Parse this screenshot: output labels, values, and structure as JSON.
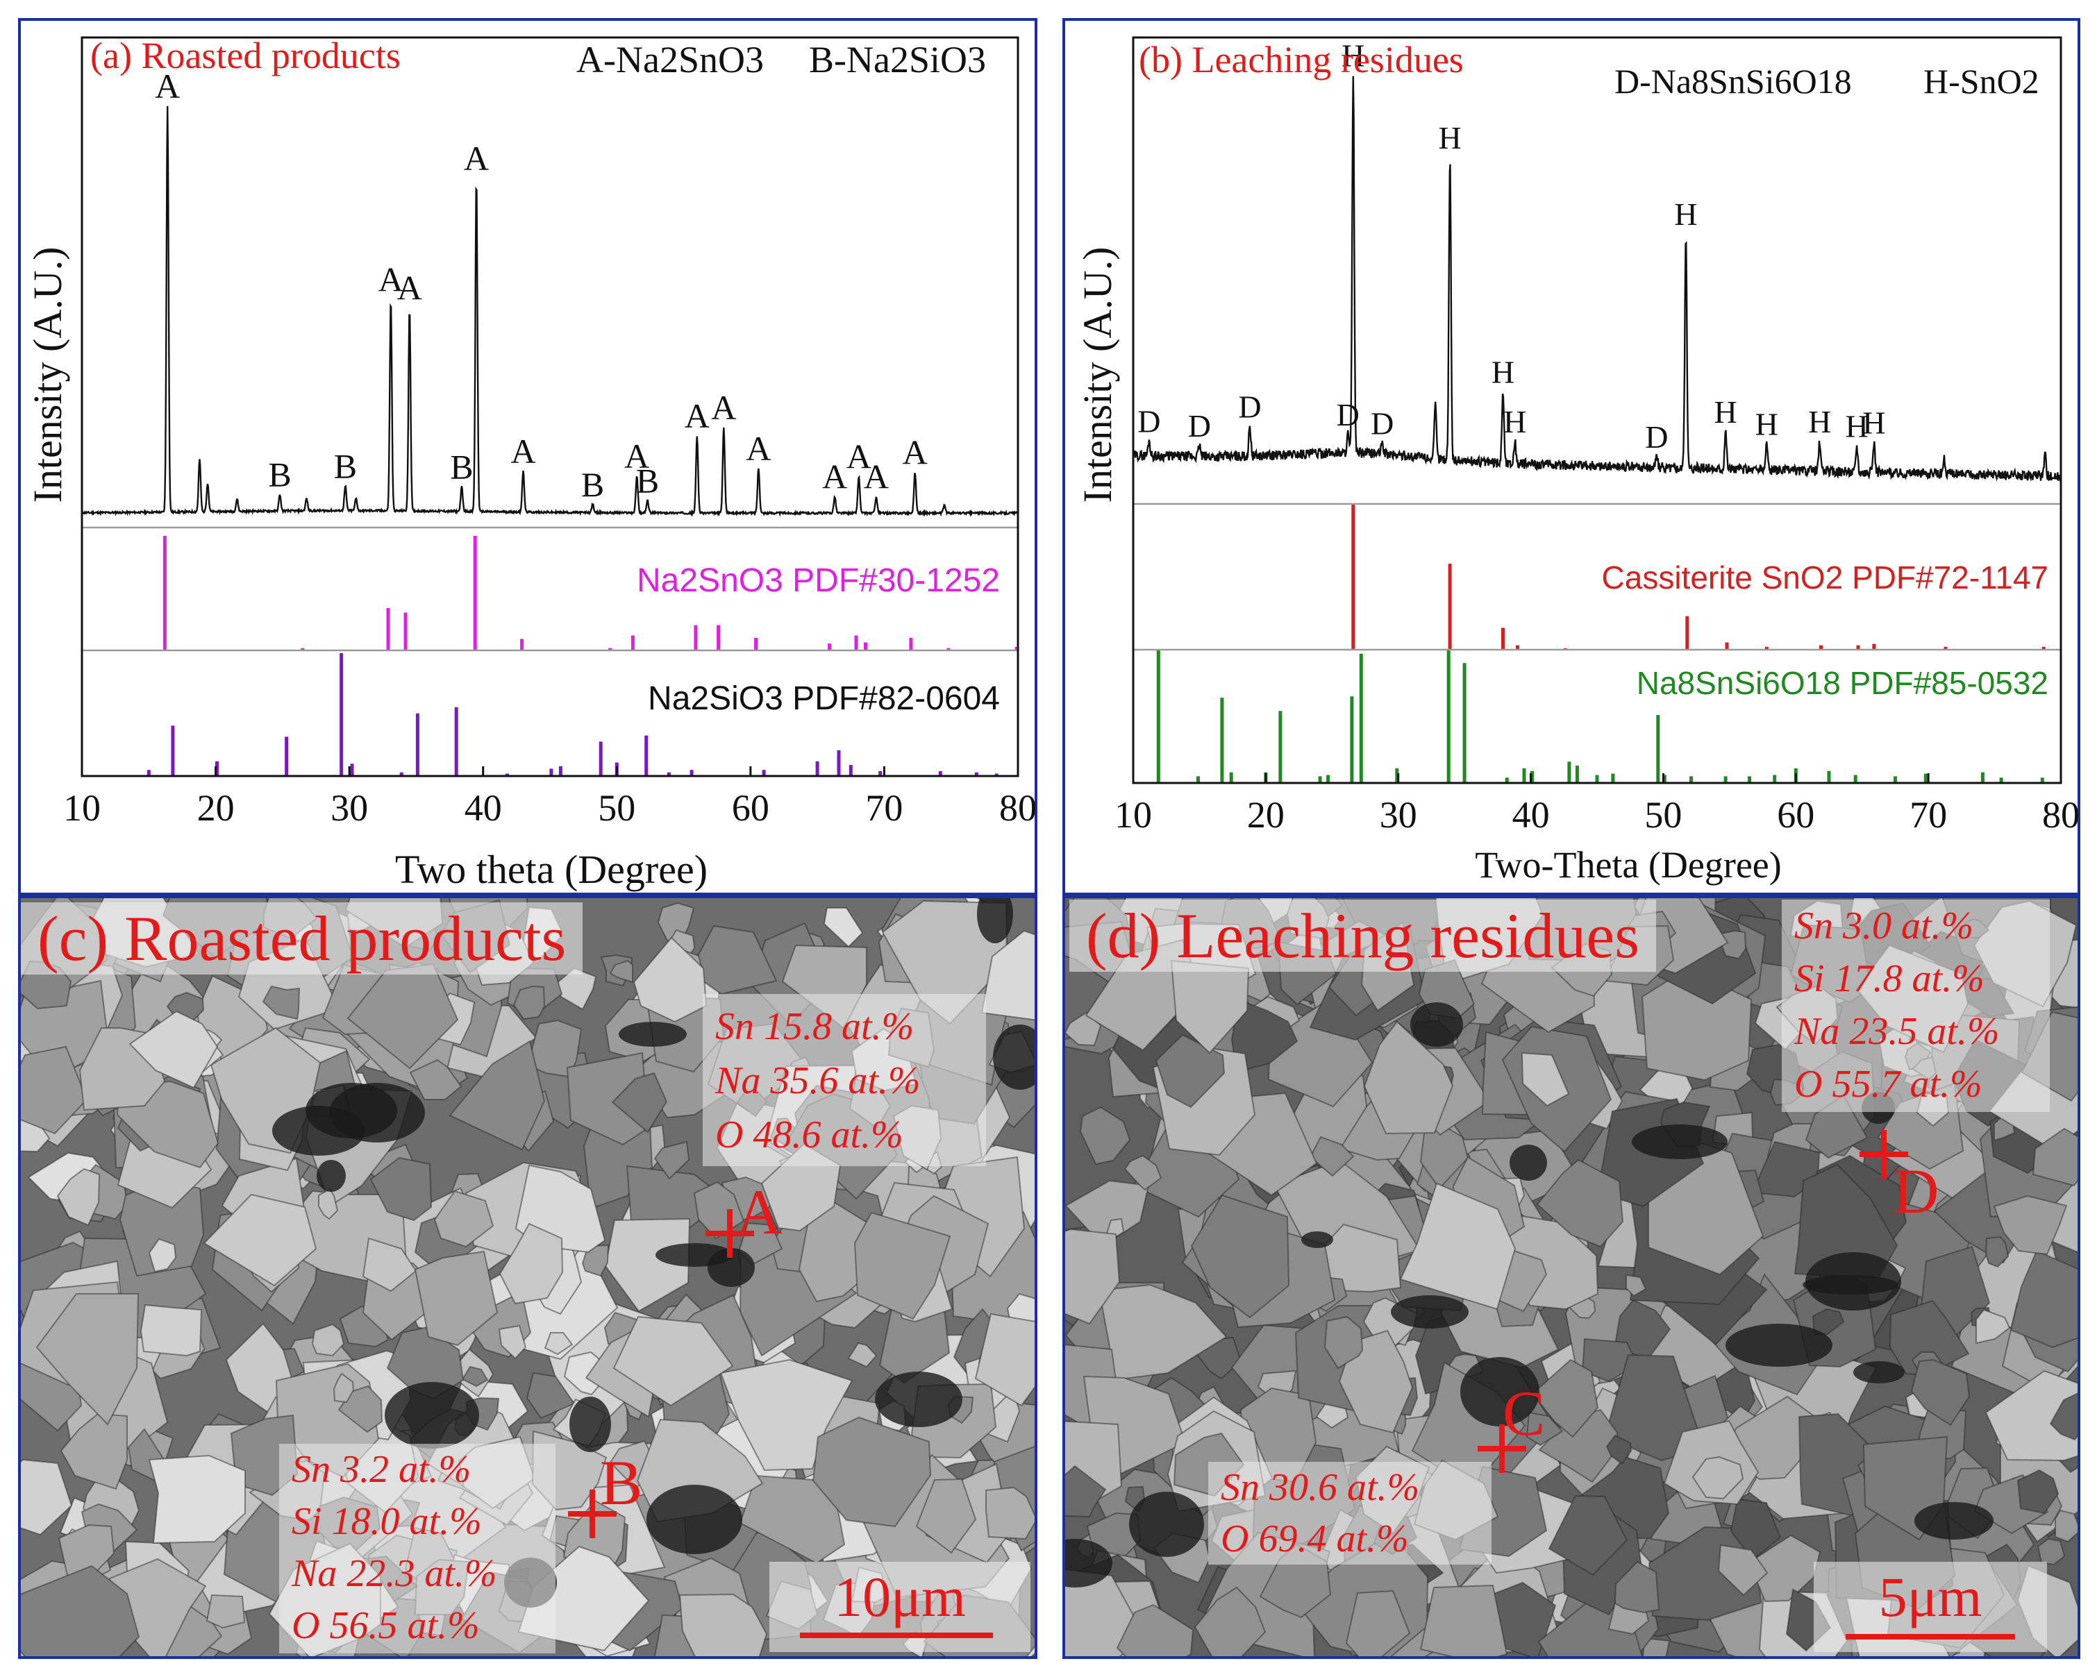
{
  "panel_a": {
    "title": "(a) Roasted products",
    "legend_a": "A-Na2SnO3",
    "legend_b": "B-Na2SiO3",
    "ref1_label": "Na2SnO3 PDF#30-1252",
    "ref2_label": "Na2SiO3 PDF#82-0604",
    "xlabel": "Two theta (Degree)",
    "ylabel": "Intensity (A.U.)",
    "colors": {
      "ref1": "#e020e0",
      "ref2": "#7a18c8",
      "title": "#e31a1a"
    }
  },
  "panel_b": {
    "title": "(b) Leaching residues",
    "legend_d": "D-Na8SnSi6O18",
    "legend_h": "H-SnO2",
    "ref1_label": "Cassiterite SnO2 PDF#72-1147",
    "ref2_label": "Na8SnSi6O18 PDF#85-0532",
    "xlabel": "Two-Theta (Degree)",
    "ylabel": "Intensity (A.U.)",
    "colors": {
      "ref1": "#d42020",
      "ref2": "#1f8a1f",
      "title": "#e31a1a"
    }
  },
  "panel_c": {
    "title": "(c) Roasted products",
    "point_a": {
      "label": "A",
      "lines": [
        "Sn 15.8 at.%",
        "Na 35.6 at.%",
        "O   48.6 at.%"
      ]
    },
    "point_b": {
      "label": "B",
      "lines": [
        "Sn 3.2 at.%",
        "Si  18.0 at.%",
        "Na 22.3 at.%",
        "O   56.5 at.%"
      ]
    },
    "scale": "10μm"
  },
  "panel_d": {
    "title": "(d)  Leaching residues",
    "point_c": {
      "label": "C",
      "lines": [
        "Sn 30.6 at.%",
        "O  69.4 at.%"
      ]
    },
    "point_d": {
      "label": "D",
      "lines": [
        "Sn   3.0 at.%",
        "Si  17.8 at.%",
        "Na 23.5 at.%",
        "O   55.7 at.%"
      ]
    },
    "scale": "5μm"
  },
  "chart_data": [
    {
      "type": "line",
      "title": "(a) Roasted products",
      "xlabel": "Two theta (Degree)",
      "ylabel": "Intensity (A.U.)",
      "xlim": [
        10,
        80
      ],
      "xticks": [
        10,
        20,
        30,
        40,
        50,
        60,
        70,
        80
      ],
      "grid": false,
      "series": [
        {
          "peaks": [
            [
              16.4,
              100,
              "A"
            ],
            [
              18.8,
              13
            ],
            [
              19.4,
              7
            ],
            [
              21.6,
              3
            ],
            [
              24.8,
              4,
              "B"
            ],
            [
              26.8,
              3
            ],
            [
              29.7,
              6,
              "B"
            ],
            [
              30.5,
              3
            ],
            [
              33.1,
              52,
              "A"
            ],
            [
              34.5,
              50,
              "A"
            ],
            [
              38.4,
              6,
              "B"
            ],
            [
              39.5,
              82,
              "A"
            ],
            [
              43.0,
              10,
              "A"
            ],
            [
              48.2,
              2,
              "B"
            ],
            [
              51.5,
              9,
              "A"
            ],
            [
              52.3,
              3,
              "B"
            ],
            [
              56.0,
              19,
              "A"
            ],
            [
              58.0,
              21,
              "A"
            ],
            [
              60.6,
              11,
              "A"
            ],
            [
              66.3,
              4,
              "A"
            ],
            [
              68.1,
              9,
              "A"
            ],
            [
              69.4,
              4,
              "A"
            ],
            [
              72.3,
              10,
              "A"
            ],
            [
              74.5,
              2
            ]
          ]
        },
        {
          "name": "Na2SnO3 PDF#30-1252",
          "sticks": [
            [
              16.2,
              100
            ],
            [
              26.5,
              2
            ],
            [
              32.9,
              37
            ],
            [
              34.2,
              33
            ],
            [
              39.4,
              100
            ],
            [
              42.9,
              10
            ],
            [
              49.5,
              2
            ],
            [
              51.2,
              13
            ],
            [
              55.9,
              22
            ],
            [
              57.6,
              22
            ],
            [
              60.4,
              11
            ],
            [
              65.9,
              6
            ],
            [
              67.9,
              13
            ],
            [
              68.6,
              7
            ],
            [
              72.0,
              11
            ],
            [
              74.8,
              2
            ],
            [
              79.9,
              3
            ]
          ]
        },
        {
          "name": "Na2SiO3 PDF#82-0604",
          "sticks": [
            [
              15.0,
              5
            ],
            [
              16.8,
              41
            ],
            [
              20.1,
              12
            ],
            [
              25.3,
              32
            ],
            [
              29.4,
              100
            ],
            [
              30.2,
              10
            ],
            [
              33.9,
              3
            ],
            [
              35.1,
              51
            ],
            [
              38.0,
              56
            ],
            [
              41.8,
              2
            ],
            [
              45.1,
              6
            ],
            [
              45.8,
              8
            ],
            [
              48.8,
              28
            ],
            [
              50.0,
              11
            ],
            [
              52.2,
              33
            ],
            [
              53.9,
              3
            ],
            [
              55.6,
              5
            ],
            [
              61.0,
              5
            ],
            [
              65.0,
              12
            ],
            [
              66.6,
              21
            ],
            [
              67.5,
              9
            ],
            [
              69.7,
              4
            ],
            [
              74.2,
              4
            ],
            [
              76.9,
              3
            ],
            [
              78.4,
              2
            ]
          ]
        }
      ]
    },
    {
      "type": "line",
      "title": "(b) Leaching residues",
      "xlabel": "Two-Theta (Degree)",
      "ylabel": "Intensity (A.U.)",
      "xlim": [
        10,
        80
      ],
      "xticks": [
        10,
        20,
        30,
        40,
        50,
        60,
        70,
        80
      ],
      "grid": false,
      "series": [
        {
          "peaks": [
            [
              11.2,
              4,
              "D"
            ],
            [
              15.0,
              3,
              "D"
            ],
            [
              18.8,
              8,
              "D"
            ],
            [
              26.6,
              100,
              "H"
            ],
            [
              26.2,
              5,
              "D"
            ],
            [
              28.8,
              3,
              "D"
            ],
            [
              32.8,
              14
            ],
            [
              33.9,
              80,
              "H"
            ],
            [
              37.9,
              19,
              "H"
            ],
            [
              38.8,
              6,
              "H"
            ],
            [
              49.5,
              3,
              "D"
            ],
            [
              51.7,
              62,
              "H"
            ],
            [
              54.7,
              10,
              "H"
            ],
            [
              57.8,
              7,
              "H"
            ],
            [
              61.8,
              8,
              "H"
            ],
            [
              64.6,
              7,
              "H"
            ],
            [
              65.9,
              8,
              "H"
            ],
            [
              71.2,
              4
            ],
            [
              78.8,
              6
            ]
          ]
        },
        {
          "name": "Cassiterite SnO2 PDF#72-1147",
          "sticks": [
            [
              26.6,
              100
            ],
            [
              33.9,
              59
            ],
            [
              37.9,
              15
            ],
            [
              39.0,
              3
            ],
            [
              42.6,
              1
            ],
            [
              51.8,
              23
            ],
            [
              54.8,
              5
            ],
            [
              57.8,
              2
            ],
            [
              61.9,
              3
            ],
            [
              64.7,
              3
            ],
            [
              65.9,
              4
            ],
            [
              71.3,
              2
            ],
            [
              78.7,
              2
            ]
          ]
        },
        {
          "name": "Na8SnSi6O18 PDF#85-0532",
          "sticks": [
            [
              11.9,
              100
            ],
            [
              14.9,
              5
            ],
            [
              16.7,
              64
            ],
            [
              17.4,
              8
            ],
            [
              20.0,
              8
            ],
            [
              21.1,
              54
            ],
            [
              24.1,
              5
            ],
            [
              24.7,
              6
            ],
            [
              26.5,
              65
            ],
            [
              27.2,
              97
            ],
            [
              29.9,
              11
            ],
            [
              33.8,
              100
            ],
            [
              35.0,
              90
            ],
            [
              38.2,
              4
            ],
            [
              39.5,
              11
            ],
            [
              40.1,
              9
            ],
            [
              42.9,
              16
            ],
            [
              43.5,
              13
            ],
            [
              45.0,
              6
            ],
            [
              46.2,
              7
            ],
            [
              49.6,
              51
            ],
            [
              50.1,
              6
            ],
            [
              52.1,
              5
            ],
            [
              54.7,
              5
            ],
            [
              56.5,
              5
            ],
            [
              58.4,
              6
            ],
            [
              60.0,
              11
            ],
            [
              62.5,
              9
            ],
            [
              64.5,
              6
            ],
            [
              67.5,
              5
            ],
            [
              69.8,
              7
            ],
            [
              74.1,
              8
            ],
            [
              75.5,
              4
            ],
            [
              78.6,
              4
            ]
          ]
        }
      ]
    }
  ]
}
